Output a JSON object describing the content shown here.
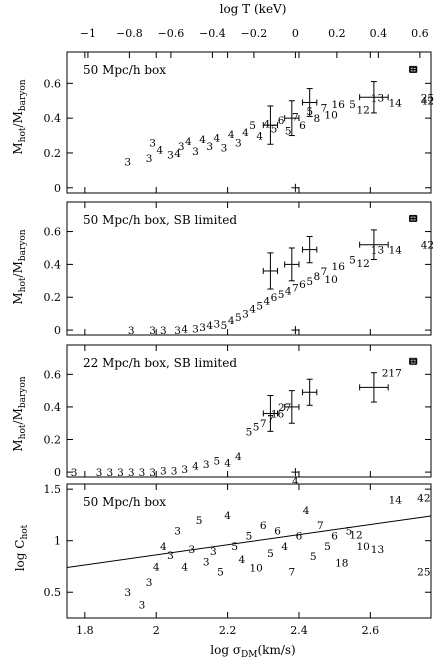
{
  "figure": {
    "top_axis_label": "log T (keV)",
    "top_ticks": [
      "−1",
      "−0.8",
      "−0.6",
      "−0.4",
      "−0.2",
      "0",
      "0.2",
      "0.4",
      "0.6"
    ],
    "bottom_axis_label_main": "log σ",
    "bottom_axis_label_sub": "DM",
    "bottom_axis_label_unit": "(km/s)",
    "ylabel_main_top": "M",
    "ylabel_sub_top": "hot",
    "ylabel_main_bottom": "M",
    "ylabel_sub_bottom": "baryon",
    "ylabel_c_main": "log C",
    "ylabel_c_sub": "hot"
  },
  "chart_data": [
    {
      "type": "scatter",
      "panel_label": "50 Mpc/h box",
      "ylabel": "Mhot/Mbaryon",
      "xlim": [
        1.75,
        2.77
      ],
      "ylim": [
        -0.03,
        0.78
      ],
      "yticks": [
        "0",
        "0.2",
        "0.4",
        "0.6"
      ],
      "x_from_top": {
        "log_T": [
          -1.0,
          -0.8,
          -0.6,
          -0.4,
          -0.2,
          0.0,
          0.2,
          0.4,
          0.6
        ]
      },
      "marker": {
        "x": 2.39,
        "y": 0.0
      },
      "points": [
        {
          "x": 1.92,
          "y": 0.15,
          "label": "3"
        },
        {
          "x": 1.98,
          "y": 0.17,
          "label": "3"
        },
        {
          "x": 1.99,
          "y": 0.26,
          "label": "3"
        },
        {
          "x": 2.01,
          "y": 0.22,
          "label": "4"
        },
        {
          "x": 2.04,
          "y": 0.19,
          "label": "3"
        },
        {
          "x": 2.06,
          "y": 0.2,
          "label": "4"
        },
        {
          "x": 2.07,
          "y": 0.24,
          "label": "3"
        },
        {
          "x": 2.09,
          "y": 0.27,
          "label": "4"
        },
        {
          "x": 2.11,
          "y": 0.21,
          "label": "3"
        },
        {
          "x": 2.13,
          "y": 0.28,
          "label": "4"
        },
        {
          "x": 2.15,
          "y": 0.24,
          "label": "3"
        },
        {
          "x": 2.17,
          "y": 0.29,
          "label": "4"
        },
        {
          "x": 2.19,
          "y": 0.23,
          "label": "3"
        },
        {
          "x": 2.21,
          "y": 0.31,
          "label": "4"
        },
        {
          "x": 2.23,
          "y": 0.26,
          "label": "3"
        },
        {
          "x": 2.25,
          "y": 0.32,
          "label": "4"
        },
        {
          "x": 2.27,
          "y": 0.36,
          "label": "5"
        },
        {
          "x": 2.29,
          "y": 0.3,
          "label": "4"
        },
        {
          "x": 2.31,
          "y": 0.37,
          "label": "4"
        },
        {
          "x": 2.33,
          "y": 0.34,
          "label": "5"
        },
        {
          "x": 2.35,
          "y": 0.39,
          "label": "6"
        },
        {
          "x": 2.37,
          "y": 0.33,
          "label": "5"
        },
        {
          "x": 2.39,
          "y": 0.41,
          "label": "7"
        },
        {
          "x": 2.41,
          "y": 0.36,
          "label": "6"
        },
        {
          "x": 2.43,
          "y": 0.44,
          "label": "5"
        },
        {
          "x": 2.45,
          "y": 0.4,
          "label": "8"
        },
        {
          "x": 2.47,
          "y": 0.46,
          "label": "7"
        },
        {
          "x": 2.49,
          "y": 0.42,
          "label": "10"
        },
        {
          "x": 2.51,
          "y": 0.48,
          "label": "16"
        },
        {
          "x": 2.55,
          "y": 0.48,
          "label": "5"
        },
        {
          "x": 2.58,
          "y": 0.45,
          "label": "12"
        },
        {
          "x": 2.62,
          "y": 0.52,
          "label": "13"
        },
        {
          "x": 2.67,
          "y": 0.49,
          "label": "14"
        },
        {
          "x": 2.76,
          "y": 0.52,
          "label": "25"
        },
        {
          "x": 2.76,
          "y": 0.5,
          "label": "42"
        }
      ],
      "obs_errorbars": [
        {
          "x": 2.32,
          "y": 0.36,
          "xerr": 0.02,
          "yerr": 0.11
        },
        {
          "x": 2.38,
          "y": 0.4,
          "xerr": 0.02,
          "yerr": 0.1
        },
        {
          "x": 2.43,
          "y": 0.49,
          "xerr": 0.02,
          "yerr": 0.08
        },
        {
          "x": 2.61,
          "y": 0.52,
          "xerr": 0.04,
          "yerr": 0.09
        },
        {
          "x": 2.72,
          "y": 0.68,
          "xerr": 0.01,
          "yerr": 0.01
        }
      ]
    },
    {
      "type": "scatter",
      "panel_label": "50 Mpc/h box, SB limited",
      "ylabel": "Mhot/Mbaryon",
      "xlim": [
        1.75,
        2.77
      ],
      "ylim": [
        -0.03,
        0.78
      ],
      "yticks": [
        "0",
        "0.2",
        "0.4",
        "0.6"
      ],
      "marker": {
        "x": 2.39,
        "y": 0.0
      },
      "points": [
        {
          "x": 1.93,
          "y": 0.0,
          "label": "3"
        },
        {
          "x": 1.99,
          "y": 0.0,
          "label": "3"
        },
        {
          "x": 2.02,
          "y": 0.0,
          "label": "3"
        },
        {
          "x": 2.06,
          "y": 0.0,
          "label": "3"
        },
        {
          "x": 2.08,
          "y": 0.01,
          "label": "4"
        },
        {
          "x": 2.11,
          "y": 0.01,
          "label": "3"
        },
        {
          "x": 2.13,
          "y": 0.02,
          "label": "3"
        },
        {
          "x": 2.15,
          "y": 0.03,
          "label": "4"
        },
        {
          "x": 2.17,
          "y": 0.04,
          "label": "3"
        },
        {
          "x": 2.19,
          "y": 0.03,
          "label": "5"
        },
        {
          "x": 2.21,
          "y": 0.06,
          "label": "4"
        },
        {
          "x": 2.23,
          "y": 0.08,
          "label": "5"
        },
        {
          "x": 2.25,
          "y": 0.1,
          "label": "3"
        },
        {
          "x": 2.27,
          "y": 0.13,
          "label": "4"
        },
        {
          "x": 2.29,
          "y": 0.15,
          "label": "5"
        },
        {
          "x": 2.31,
          "y": 0.18,
          "label": "4"
        },
        {
          "x": 2.33,
          "y": 0.2,
          "label": "6"
        },
        {
          "x": 2.35,
          "y": 0.22,
          "label": "5"
        },
        {
          "x": 2.37,
          "y": 0.24,
          "label": "4"
        },
        {
          "x": 2.39,
          "y": 0.26,
          "label": "7"
        },
        {
          "x": 2.41,
          "y": 0.28,
          "label": "6"
        },
        {
          "x": 2.43,
          "y": 0.3,
          "label": "5"
        },
        {
          "x": 2.45,
          "y": 0.33,
          "label": "8"
        },
        {
          "x": 2.47,
          "y": 0.36,
          "label": "7"
        },
        {
          "x": 2.49,
          "y": 0.31,
          "label": "10"
        },
        {
          "x": 2.51,
          "y": 0.39,
          "label": "16"
        },
        {
          "x": 2.55,
          "y": 0.43,
          "label": "5"
        },
        {
          "x": 2.58,
          "y": 0.41,
          "label": "12"
        },
        {
          "x": 2.62,
          "y": 0.49,
          "label": "13"
        },
        {
          "x": 2.67,
          "y": 0.49,
          "label": "14"
        },
        {
          "x": 2.76,
          "y": 0.52,
          "label": "42"
        }
      ],
      "obs_errorbars": [
        {
          "x": 2.32,
          "y": 0.36,
          "xerr": 0.02,
          "yerr": 0.11
        },
        {
          "x": 2.38,
          "y": 0.4,
          "xerr": 0.02,
          "yerr": 0.1
        },
        {
          "x": 2.43,
          "y": 0.49,
          "xerr": 0.02,
          "yerr": 0.08
        },
        {
          "x": 2.61,
          "y": 0.52,
          "xerr": 0.04,
          "yerr": 0.09
        },
        {
          "x": 2.72,
          "y": 0.68,
          "xerr": 0.01,
          "yerr": 0.01
        }
      ]
    },
    {
      "type": "scatter",
      "panel_label": "22 Mpc/h box, SB limited",
      "ylabel": "Mhot/Mbaryon",
      "xlim": [
        1.75,
        2.77
      ],
      "ylim": [
        -0.03,
        0.78
      ],
      "yticks": [
        "0",
        "0.2",
        "0.4",
        "0.6"
      ],
      "marker": {
        "x": 2.39,
        "y": 0.0
      },
      "points": [
        {
          "x": 1.77,
          "y": 0.0,
          "label": "3"
        },
        {
          "x": 1.84,
          "y": 0.0,
          "label": "3"
        },
        {
          "x": 1.87,
          "y": 0.0,
          "label": "3"
        },
        {
          "x": 1.9,
          "y": 0.0,
          "label": "3"
        },
        {
          "x": 1.93,
          "y": 0.0,
          "label": "3"
        },
        {
          "x": 1.96,
          "y": 0.0,
          "label": "3"
        },
        {
          "x": 1.99,
          "y": 0.0,
          "label": "3"
        },
        {
          "x": 2.02,
          "y": 0.01,
          "label": "3"
        },
        {
          "x": 2.05,
          "y": 0.01,
          "label": "3"
        },
        {
          "x": 2.08,
          "y": 0.02,
          "label": "3"
        },
        {
          "x": 2.11,
          "y": 0.04,
          "label": "4"
        },
        {
          "x": 2.14,
          "y": 0.05,
          "label": "3"
        },
        {
          "x": 2.17,
          "y": 0.07,
          "label": "5"
        },
        {
          "x": 2.2,
          "y": 0.06,
          "label": "4"
        },
        {
          "x": 2.23,
          "y": 0.1,
          "label": "4"
        },
        {
          "x": 2.26,
          "y": 0.25,
          "label": "5"
        },
        {
          "x": 2.28,
          "y": 0.28,
          "label": "5"
        },
        {
          "x": 2.3,
          "y": 0.3,
          "label": "7"
        },
        {
          "x": 2.32,
          "y": 0.33,
          "label": "7"
        },
        {
          "x": 2.34,
          "y": 0.36,
          "label": "16"
        },
        {
          "x": 2.36,
          "y": 0.4,
          "label": "27"
        },
        {
          "x": 2.66,
          "y": 0.61,
          "label": "217"
        }
      ],
      "obs_errorbars": [
        {
          "x": 2.32,
          "y": 0.36,
          "xerr": 0.02,
          "yerr": 0.11
        },
        {
          "x": 2.38,
          "y": 0.4,
          "xerr": 0.02,
          "yerr": 0.1
        },
        {
          "x": 2.43,
          "y": 0.49,
          "xerr": 0.02,
          "yerr": 0.08
        },
        {
          "x": 2.61,
          "y": 0.52,
          "xerr": 0.04,
          "yerr": 0.09
        },
        {
          "x": 2.72,
          "y": 0.68,
          "xerr": 0.01,
          "yerr": 0.01
        }
      ],
      "extra_labels": [
        {
          "x": 2.39,
          "y": -0.05,
          "label": "4"
        }
      ]
    },
    {
      "type": "scatter",
      "panel_label": "50 Mpc/h box",
      "ylabel": "log Chot",
      "xlabel": "log σDM (km/s)",
      "xlim": [
        1.75,
        2.77
      ],
      "ylim": [
        0.25,
        1.55
      ],
      "yticks": [
        "0.5",
        "1",
        "1.5"
      ],
      "xticks": [
        "1.8",
        "2",
        "2.2",
        "2.4",
        "2.6"
      ],
      "fit_line": {
        "x": [
          1.75,
          2.77
        ],
        "y": [
          0.74,
          1.24
        ]
      },
      "points": [
        {
          "x": 1.92,
          "y": 0.5,
          "label": "3"
        },
        {
          "x": 1.96,
          "y": 0.38,
          "label": "3"
        },
        {
          "x": 1.98,
          "y": 0.6,
          "label": "3"
        },
        {
          "x": 2.0,
          "y": 0.75,
          "label": "4"
        },
        {
          "x": 2.02,
          "y": 0.95,
          "label": "4"
        },
        {
          "x": 2.04,
          "y": 0.86,
          "label": "3"
        },
        {
          "x": 2.06,
          "y": 1.1,
          "label": "3"
        },
        {
          "x": 2.08,
          "y": 0.75,
          "label": "4"
        },
        {
          "x": 2.1,
          "y": 0.92,
          "label": "3"
        },
        {
          "x": 2.12,
          "y": 1.2,
          "label": "5"
        },
        {
          "x": 2.14,
          "y": 0.8,
          "label": "3"
        },
        {
          "x": 2.16,
          "y": 0.9,
          "label": "3"
        },
        {
          "x": 2.18,
          "y": 0.7,
          "label": "5"
        },
        {
          "x": 2.2,
          "y": 1.25,
          "label": "4"
        },
        {
          "x": 2.22,
          "y": 0.95,
          "label": "5"
        },
        {
          "x": 2.24,
          "y": 0.82,
          "label": "4"
        },
        {
          "x": 2.26,
          "y": 1.05,
          "label": "5"
        },
        {
          "x": 2.28,
          "y": 0.74,
          "label": "10"
        },
        {
          "x": 2.3,
          "y": 1.15,
          "label": "6"
        },
        {
          "x": 2.32,
          "y": 0.88,
          "label": "5"
        },
        {
          "x": 2.34,
          "y": 1.1,
          "label": "6"
        },
        {
          "x": 2.36,
          "y": 0.95,
          "label": "4"
        },
        {
          "x": 2.38,
          "y": 0.7,
          "label": "7"
        },
        {
          "x": 2.4,
          "y": 1.05,
          "label": "6"
        },
        {
          "x": 2.42,
          "y": 1.3,
          "label": "4"
        },
        {
          "x": 2.44,
          "y": 0.85,
          "label": "5"
        },
        {
          "x": 2.46,
          "y": 1.15,
          "label": "7"
        },
        {
          "x": 2.48,
          "y": 0.95,
          "label": "5"
        },
        {
          "x": 2.5,
          "y": 1.05,
          "label": "6"
        },
        {
          "x": 2.52,
          "y": 0.79,
          "label": "18"
        },
        {
          "x": 2.54,
          "y": 1.1,
          "label": "5"
        },
        {
          "x": 2.56,
          "y": 1.06,
          "label": "12"
        },
        {
          "x": 2.58,
          "y": 0.95,
          "label": "10"
        },
        {
          "x": 2.62,
          "y": 0.92,
          "label": "13"
        },
        {
          "x": 2.67,
          "y": 1.4,
          "label": "14"
        },
        {
          "x": 2.75,
          "y": 1.42,
          "label": "42"
        },
        {
          "x": 2.75,
          "y": 0.7,
          "label": "25"
        }
      ]
    }
  ]
}
